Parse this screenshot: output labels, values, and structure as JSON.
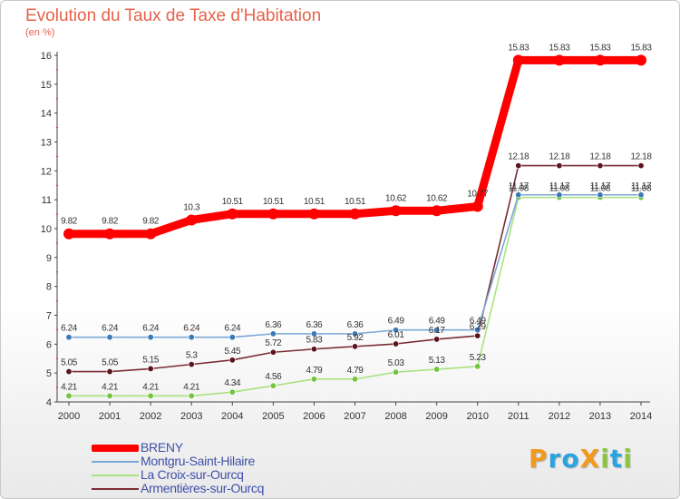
{
  "page": {
    "title": "Evolution du Taux de Taxe d'Habitation",
    "subtitle": "(en %)"
  },
  "logo": {
    "text": "ProXiti",
    "letters": [
      {
        "ch": "P",
        "color": "#f29a1e"
      },
      {
        "ch": "r",
        "color": "#2aa4dd"
      },
      {
        "ch": "o",
        "color": "#2aa4dd"
      },
      {
        "ch": "X",
        "color": "#f29a1e"
      },
      {
        "ch": "i",
        "color": "#8cc63f"
      },
      {
        "ch": "t",
        "color": "#2aa4dd"
      },
      {
        "ch": "i",
        "color": "#8cc63f"
      }
    ]
  },
  "chart_data": {
    "type": "line",
    "title": "Evolution du Taux de Taxe d'Habitation",
    "ylabel": "(en %)",
    "xlabel": "",
    "x": [
      2000,
      2001,
      2002,
      2003,
      2004,
      2005,
      2006,
      2007,
      2008,
      2009,
      2010,
      2011,
      2012,
      2013,
      2014
    ],
    "ylim": [
      4,
      16
    ],
    "yticks": [
      4,
      5,
      6,
      7,
      8,
      9,
      10,
      11,
      12,
      13,
      14,
      15,
      16
    ],
    "grid": false,
    "legend_position": "bottom-left",
    "series": [
      {
        "name": "BRENY",
        "color": "#ff0000",
        "marker": "#ff0000",
        "values": [
          9.82,
          9.82,
          9.82,
          10.3,
          10.51,
          10.51,
          10.51,
          10.51,
          10.62,
          10.62,
          10.77,
          15.83,
          15.83,
          15.83,
          15.83
        ]
      },
      {
        "name": "Montgru-Saint-Hilaire",
        "color": "#7aa8d6",
        "marker": "#3a78b8",
        "values": [
          6.24,
          6.24,
          6.24,
          6.24,
          6.24,
          6.36,
          6.36,
          6.36,
          6.49,
          6.49,
          6.49,
          11.17,
          11.17,
          11.17,
          11.17
        ]
      },
      {
        "name": "La Croix-sur-Ourcq",
        "color": "#a9e27f",
        "marker": "#74c440",
        "values": [
          4.21,
          4.21,
          4.21,
          4.21,
          4.34,
          4.56,
          4.79,
          4.79,
          5.03,
          5.13,
          5.23,
          11.08,
          11.08,
          11.08,
          11.08
        ]
      },
      {
        "name": "Armentières-sur-Ourcq",
        "color": "#7a2b33",
        "marker": "#5c141c",
        "values": [
          5.05,
          5.05,
          5.15,
          5.3,
          5.45,
          5.72,
          5.83,
          5.92,
          6.01,
          6.17,
          6.29,
          12.18,
          12.18,
          12.18,
          12.18
        ]
      }
    ]
  }
}
